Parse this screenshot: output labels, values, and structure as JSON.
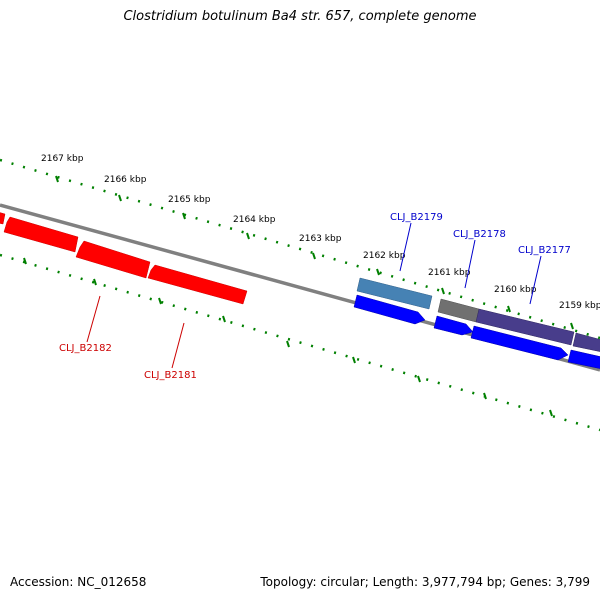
{
  "title": "Clostridium botulinum Ba4 str. 657, complete genome",
  "footer": {
    "accession": "Accession: NC_012658",
    "topology": "Topology: circular; Length: 3,977,794 bp; Genes: 3,799"
  },
  "colors": {
    "backbone": "#808080",
    "reverse_gene": "#ff0000",
    "forward_gene": "#0000ff",
    "tick": "#008000",
    "reverse_label": "#cc0000",
    "forward_label": "#0000cc"
  },
  "scale_ticks": [
    {
      "label": "2167 kbp"
    },
    {
      "label": "2166 kbp"
    },
    {
      "label": "2165 kbp"
    },
    {
      "label": "2164 kbp"
    },
    {
      "label": "2163 kbp"
    },
    {
      "label": "2162 kbp"
    },
    {
      "label": "2161 kbp"
    },
    {
      "label": "2160 kbp"
    },
    {
      "label": "2159 kbp"
    }
  ],
  "gene_labels": [
    {
      "label": "CLJ_B2182",
      "strand": "reverse"
    },
    {
      "label": "CLJ_B2181",
      "strand": "reverse"
    },
    {
      "label": "CLJ_B2179",
      "strand": "forward"
    },
    {
      "label": "CLJ_B2178",
      "strand": "forward"
    },
    {
      "label": "CLJ_B2177",
      "strand": "forward"
    }
  ]
}
